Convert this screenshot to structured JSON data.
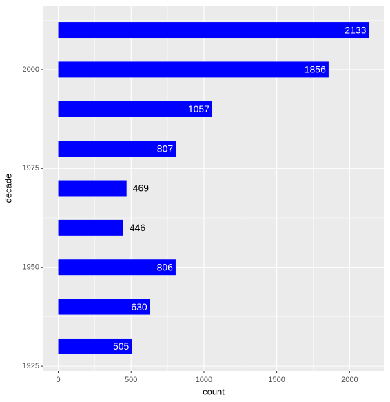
{
  "chart_data": {
    "type": "bar",
    "orientation": "horizontal",
    "x": [
      1930,
      1940,
      1950,
      1960,
      1970,
      1980,
      1990,
      2000,
      2010
    ],
    "values": [
      505,
      630,
      806,
      446,
      469,
      807,
      1057,
      1856,
      2133
    ],
    "color": "#0000ff",
    "x_label": "decade",
    "y_label": "count",
    "xlim": [
      1923.8,
      2016.2
    ],
    "xticks": [
      1925,
      1950,
      1975,
      2000
    ],
    "ylim": [
      -106.65,
      2239.65
    ],
    "yticks": [
      0,
      500,
      1000,
      1500,
      2000
    ],
    "grid": true
  }
}
